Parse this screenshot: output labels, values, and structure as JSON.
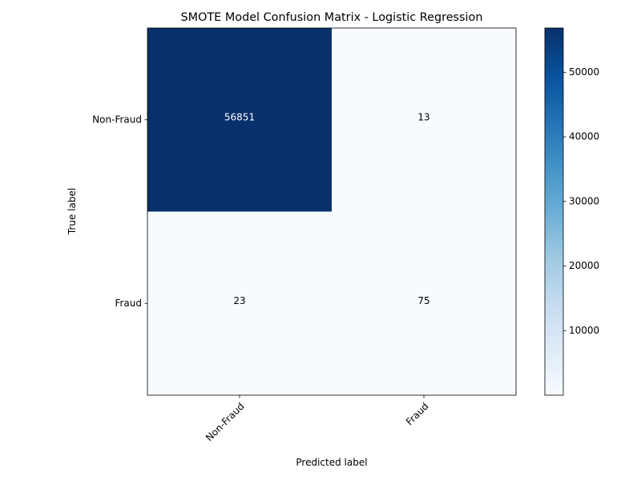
{
  "chart_data": {
    "type": "heatmap",
    "title": "SMOTE Model Confusion Matrix - Logistic Regression",
    "xlabel": "Predicted label",
    "ylabel": "True label",
    "x_categories": [
      "Non-Fraud",
      "Fraud"
    ],
    "y_categories": [
      "Non-Fraud",
      "Fraud"
    ],
    "values": [
      [
        56851,
        13
      ],
      [
        23,
        75
      ]
    ],
    "colormap": "Blues",
    "colorbar": {
      "min": 13,
      "max": 56851,
      "ticks": [
        10000,
        20000,
        30000,
        40000,
        50000
      ]
    },
    "text_color_dark_cells": "#ffffff",
    "text_color_light_cells": "#000000"
  }
}
